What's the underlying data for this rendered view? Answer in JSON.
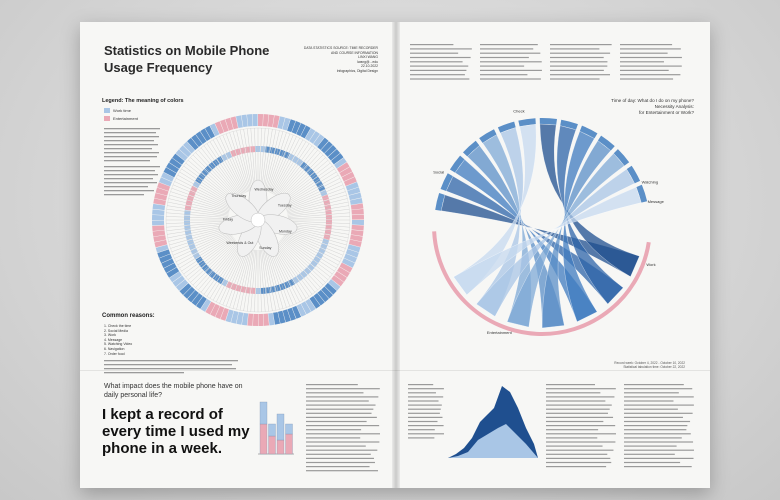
{
  "left_page": {
    "title_line1": "Statistics on Mobile Phone",
    "title_line2": "Usage Frequency",
    "source_lines": [
      "DATA STATISTICS SOURCE: TIME RECORDER",
      "AND COURSE INFORMATION",
      "LINXI WANG",
      "lwang@...edu",
      "22.10.2022",
      "Infographics, Digital Design"
    ],
    "legend_heading": "Legend: The meaning of colors",
    "legend_items": [
      {
        "label": "Work time",
        "color": "#a9c6e6"
      },
      {
        "label": "Entertainment",
        "color": "#eaa9b6"
      }
    ],
    "common_reasons_heading": "Common reasons:",
    "reasons": [
      "1. Check the time",
      "2. Social Media",
      "3. Work",
      "4. Message",
      "5. Watching Video",
      "6. Navigation",
      "7. Order food"
    ],
    "question": "What impact does the mobile phone have on daily personal life?",
    "headline": "I kept a record of every time I used my phone in a week.",
    "radial_labels": [
      "Wednesday",
      "Tuesday",
      "Monday",
      "Sunday",
      "Weekends & Out",
      "Friday",
      "Thursday"
    ]
  },
  "right_page": {
    "time_of_day_line1": "Time of day: What do I do on my phone?",
    "time_of_day_line2": "Necessity Analysis:",
    "time_of_day_line3": "for Entertainment or Work?",
    "chord_labels": [
      "Check",
      "Social",
      "Watching",
      "Message",
      "Work",
      "Entertainment"
    ],
    "record_foot_line1": "Record week: October 4, 2022 - October 10, 2022",
    "record_foot_line2": "Statistical tabulation time: October 22, 2022"
  },
  "colors": {
    "work": "#5b8fc7",
    "work_light": "#a9c6e6",
    "entertainment": "#eaa9b6",
    "deep_blue": "#1f4f8f"
  }
}
